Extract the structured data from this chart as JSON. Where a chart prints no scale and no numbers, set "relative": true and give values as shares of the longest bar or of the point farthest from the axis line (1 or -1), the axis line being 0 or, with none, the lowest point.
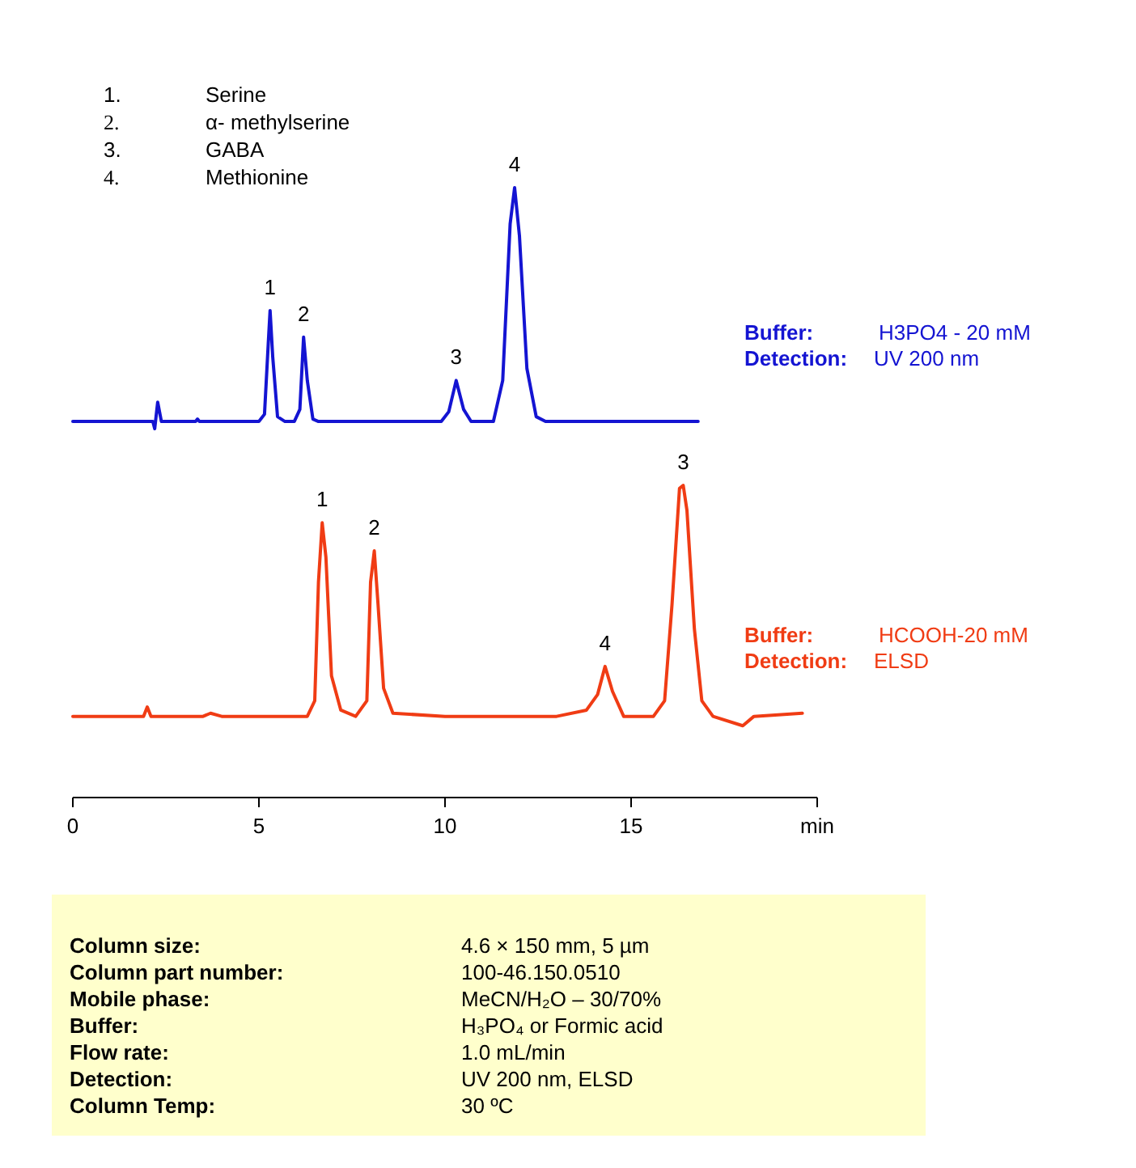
{
  "chart_data": [
    {
      "type": "line",
      "relative": true,
      "xlim": [
        0,
        20
      ],
      "series": [
        {
          "color": "#1414d2",
          "x": [
            0,
            2.0,
            2.15,
            2.2,
            2.28,
            2.38,
            3.3,
            3.35,
            3.4,
            5.0,
            5.15,
            5.25,
            5.3,
            5.37,
            5.5,
            5.7,
            5.95,
            6.1,
            6.2,
            6.3,
            6.45,
            6.6,
            9.9,
            10.1,
            10.3,
            10.5,
            10.7,
            11.3,
            11.55,
            11.75,
            11.87,
            12.0,
            12.2,
            12.45,
            12.7,
            16.8
          ],
          "values": [
            0.03,
            0.03,
            0.03,
            0,
            0.11,
            0.03,
            0.03,
            0.04,
            0.03,
            0.03,
            0.06,
            0.35,
            0.49,
            0.3,
            0.05,
            0.03,
            0.03,
            0.08,
            0.38,
            0.2,
            0.04,
            0.03,
            0.03,
            0.07,
            0.2,
            0.08,
            0.03,
            0.03,
            0.2,
            0.85,
            1.0,
            0.8,
            0.25,
            0.05,
            0.03,
            0.03
          ]
        }
      ],
      "annotations": [
        {
          "text": "1",
          "x": 5.3,
          "y": 0.49
        },
        {
          "text": "2",
          "x": 6.2,
          "y": 0.38
        },
        {
          "text": "3",
          "x": 10.3,
          "y": 0.2
        },
        {
          "text": "4",
          "x": 11.87,
          "y": 1.0
        },
        "1.",
        "Serine",
        "2.",
        "α- methylserine",
        "3.",
        "GABA",
        "4.",
        "Methionine",
        "Buffer:",
        "H3PO4 - 20 mM",
        "Detection:",
        "UV 200 nm"
      ]
    },
    {
      "type": "line",
      "relative": true,
      "xlim": [
        0,
        20
      ],
      "xticks": [
        0,
        5,
        10,
        15,
        {
          "value": 20,
          "label": "min"
        }
      ],
      "series": [
        {
          "color": "#f03c14",
          "x": [
            0,
            1.9,
            2.0,
            2.1,
            3.5,
            3.7,
            4.0,
            5.0,
            6.3,
            6.5,
            6.6,
            6.7,
            6.8,
            6.95,
            7.2,
            7.6,
            7.9,
            8.0,
            8.1,
            8.2,
            8.35,
            8.6,
            10,
            13.0,
            13.8,
            14.1,
            14.3,
            14.5,
            14.8,
            15.6,
            15.9,
            16.1,
            16.3,
            16.4,
            16.5,
            16.7,
            16.9,
            17.2,
            18.0,
            18.3,
            19.6
          ],
          "values": [
            0.26,
            0.26,
            0.29,
            0.26,
            0.26,
            0.27,
            0.26,
            0.26,
            0.26,
            0.31,
            0.69,
            0.88,
            0.77,
            0.39,
            0.28,
            0.26,
            0.31,
            0.69,
            0.79,
            0.62,
            0.35,
            0.27,
            0.26,
            0.26,
            0.28,
            0.33,
            0.42,
            0.34,
            0.26,
            0.26,
            0.31,
            0.62,
            0.99,
            1.0,
            0.92,
            0.54,
            0.31,
            0.26,
            0.23,
            0.26,
            0.27
          ]
        }
      ],
      "annotations": [
        {
          "text": "1",
          "x": 6.7,
          "y": 0.88
        },
        {
          "text": "2",
          "x": 8.1,
          "y": 0.79
        },
        {
          "text": "4",
          "x": 14.3,
          "y": 0.42
        },
        {
          "text": "3",
          "x": 16.4,
          "y": 1.0
        },
        "Buffer:",
        "HCOOH-20 mM",
        "Detection:",
        "ELSD",
        "Column size:",
        "4.6 × 150 mm, 5 µm",
        "Column part number:",
        "100-46.150.0510",
        "Mobile phase:",
        "MeCN/H₂O – 30/70%",
        "Buffer:",
        "H₃PO₄  or Formic acid",
        "Flow rate:",
        "1.0 mL/min",
        "Detection:",
        "UV 200  nm, ELSD",
        "Column Temp:",
        "30 ºC"
      ]
    }
  ]
}
